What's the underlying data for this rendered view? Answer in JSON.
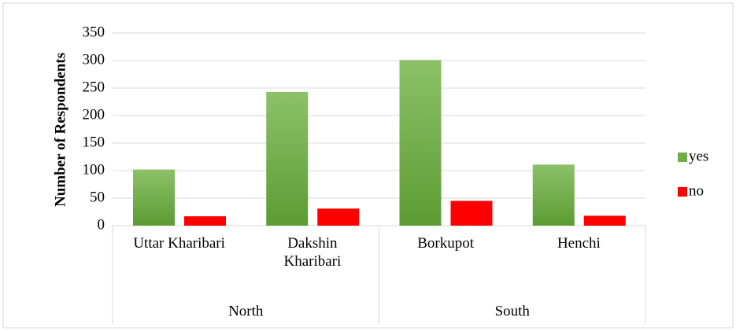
{
  "chart_data": {
    "type": "bar",
    "y_label": "Number of Respondents",
    "categories": [
      "Uttar Kharibari",
      "Dakshin Kharibari",
      "Borkupot",
      "Henchi"
    ],
    "groups": [
      {
        "name": "North",
        "span": 2
      },
      {
        "name": "South",
        "span": 2
      }
    ],
    "series": [
      {
        "name": "yes",
        "color": "#70ad47",
        "values": [
          102,
          243,
          301,
          111
        ]
      },
      {
        "name": "no",
        "color": "#ff0000",
        "values": [
          17,
          31,
          45,
          18
        ]
      }
    ],
    "ylim": [
      0,
      350
    ],
    "yticks": [
      0,
      50,
      100,
      150,
      200,
      250,
      300,
      350
    ],
    "grid": true,
    "legend": "right"
  }
}
